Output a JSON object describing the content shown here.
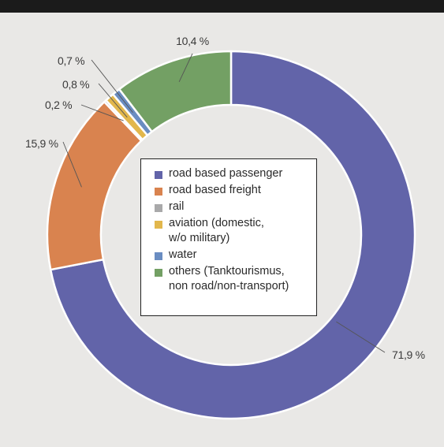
{
  "chart_data": {
    "type": "pie",
    "variant": "donut",
    "categories": [
      "road based passenger",
      "road based freight",
      "rail",
      "aviation (domestic, w/o military)",
      "water",
      "others (Tanktourismus, non road/non-transport)"
    ],
    "values": [
      71.9,
      15.9,
      0.2,
      0.8,
      0.7,
      10.4
    ],
    "value_labels": [
      "71,9 %",
      "15,9 %",
      "0,2 %",
      "0,8 %",
      "0,7 %",
      "10,4 %"
    ],
    "colors": [
      "#6264a9",
      "#d9834f",
      "#a9a9aa",
      "#e2b74c",
      "#6a8dc2",
      "#73a064"
    ],
    "legend": {
      "placement": "center",
      "entries": [
        "road based passenger",
        "road based freight",
        "rail",
        "aviation (domestic,\nw/o military)",
        "water",
        "others (Tanktourismus,\nnon road/non-transport)"
      ]
    },
    "title": ""
  }
}
